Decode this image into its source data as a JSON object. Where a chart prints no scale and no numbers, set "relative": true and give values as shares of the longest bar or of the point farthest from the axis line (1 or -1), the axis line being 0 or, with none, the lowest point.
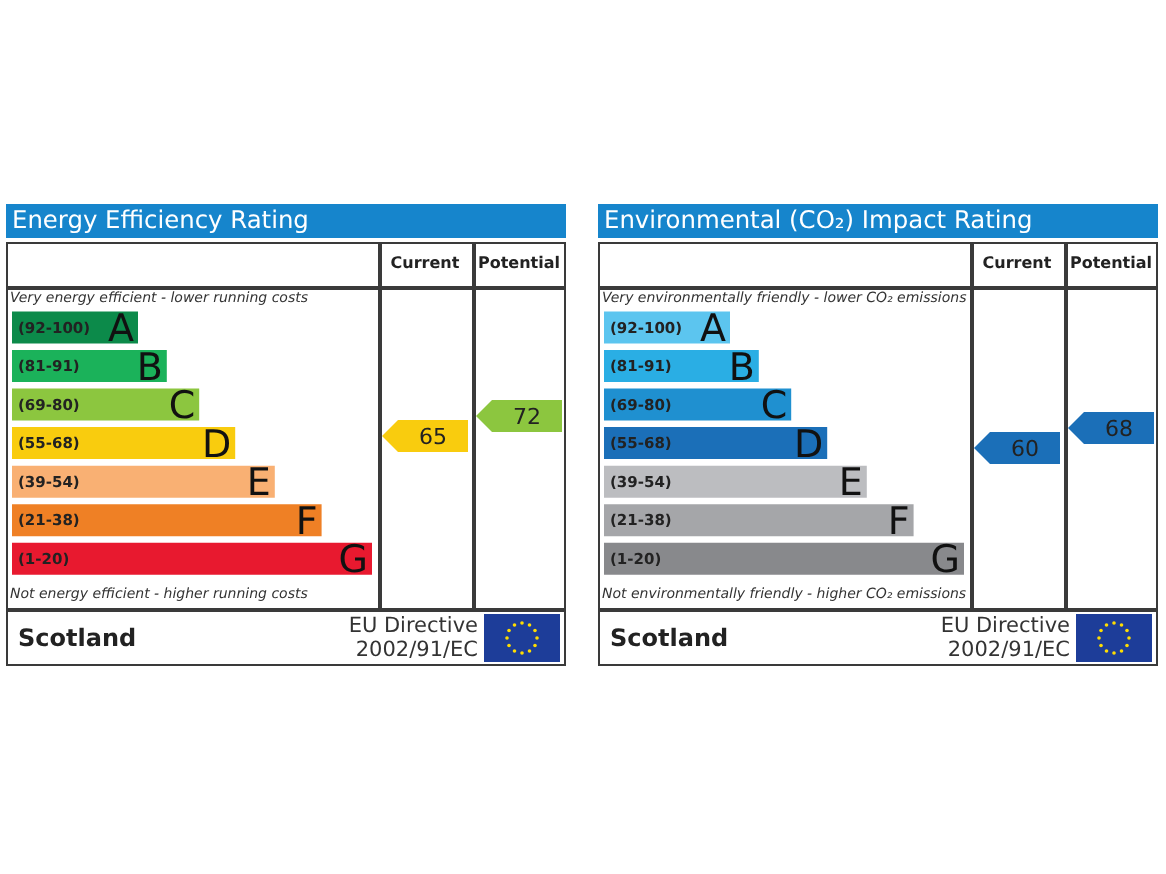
{
  "chart_data": [
    {
      "type": "bar",
      "orientation": "horizontal",
      "relative": true,
      "title": "Energy Efficiency Rating",
      "categories": [
        "(92-100)",
        "(81-91)",
        "(69-80)",
        "(55-68)",
        "(39-54)",
        "(21-38)",
        "(1-20)"
      ],
      "values": [
        0.35,
        0.43,
        0.52,
        0.62,
        0.73,
        0.86,
        1
      ],
      "colors": [
        "#0c8a4a",
        "#1bb25a",
        "#8cc63f",
        "#f9cc0e",
        "#f9b073",
        "#ef8025",
        "#e8192f"
      ],
      "annotations": [
        "Very energy efficient - lower running costs",
        "Not energy efficient - higher running costs",
        "Current",
        "Potential",
        "Scotland",
        "EU Directive 2002/91/EC",
        "65",
        "72",
        {
          "text": "A",
          "x": 0.35,
          "y": "(92-100)"
        },
        {
          "text": "B",
          "x": 0.43,
          "y": "(81-91)"
        },
        {
          "text": "C",
          "x": 0.52,
          "y": "(69-80)"
        },
        {
          "text": "D",
          "x": 0.62,
          "y": "(55-68)"
        },
        {
          "text": "E",
          "x": 0.73,
          "y": "(39-54)"
        },
        {
          "text": "F",
          "x": 0.86,
          "y": "(21-38)"
        },
        {
          "text": "G",
          "x": 1,
          "y": "(1-20)"
        }
      ]
    },
    {
      "type": "bar",
      "orientation": "horizontal",
      "relative": true,
      "title": "Environmental (CO₂) Impact Rating",
      "categories": [
        "(92-100)",
        "(81-91)",
        "(69-80)",
        "(55-68)",
        "(39-54)",
        "(21-38)",
        "(1-20)"
      ],
      "values": [
        0.35,
        0.43,
        0.52,
        0.62,
        0.73,
        0.86,
        1
      ],
      "colors": [
        "#5cc5ef",
        "#2aaee4",
        "#1f90d0",
        "#1b6fb8",
        "#bcbdc0",
        "#a5a6a9",
        "#88898c"
      ],
      "annotations": [
        "Very environmentally friendly - lower CO₂ emissions",
        "Not environmentally friendly - higher CO₂ emissions",
        "Current",
        "Potential",
        "Scotland",
        "EU Directive 2002/91/EC",
        "60",
        "68",
        {
          "text": "A",
          "x": 0.35,
          "y": "(92-100)"
        },
        {
          "text": "B",
          "x": 0.43,
          "y": "(81-91)"
        },
        {
          "text": "C",
          "x": 0.52,
          "y": "(69-80)"
        },
        {
          "text": "D",
          "x": 0.62,
          "y": "(55-68)"
        },
        {
          "text": "E",
          "x": 0.73,
          "y": "(39-54)"
        },
        {
          "text": "F",
          "x": 0.86,
          "y": "(21-38)"
        },
        {
          "text": "G",
          "x": 1,
          "y": "(1-20)"
        }
      ]
    }
  ]
}
